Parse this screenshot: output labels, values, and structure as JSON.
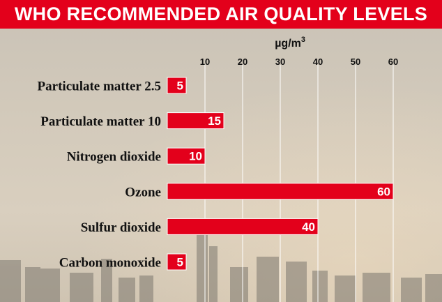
{
  "banner": {
    "title": "WHO RECOMMENDED AIR QUALITY LEVELS"
  },
  "colors": {
    "bar": "#e3001b",
    "banner": "#e3001b",
    "grid": "#ffffff"
  },
  "chart_data": {
    "type": "bar",
    "orientation": "horizontal",
    "title": "WHO RECOMMENDED AIR QUALITY LEVELS",
    "unit_label": "µg/m",
    "unit_superscript": "3",
    "categories": [
      "Particulate matter 2.5",
      "Particulate matter 10",
      "Nitrogen dioxide",
      "Ozone",
      "Sulfur dioxide",
      "Carbon monoxide"
    ],
    "values": [
      5,
      15,
      10,
      60,
      40,
      5
    ],
    "data_labels": [
      "5",
      "15",
      "10",
      "60",
      "40",
      "5"
    ],
    "xticks": [
      10,
      20,
      30,
      40,
      50,
      60
    ],
    "xlim": [
      0,
      60
    ],
    "grid": true
  }
}
